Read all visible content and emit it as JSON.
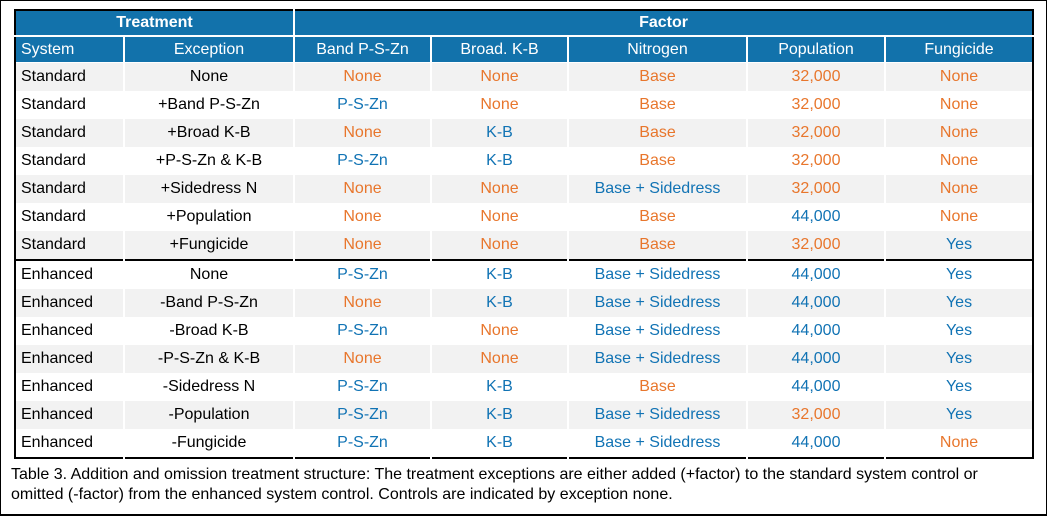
{
  "colors": {
    "header_bg": "#1272AB",
    "header_text": "#FFFFFF",
    "row_stripe": "#F2F2F2",
    "row_plain": "#FFFFFF",
    "border": "#000000",
    "level_text": {
      "plain": "#000000",
      "standard": "#E8762C",
      "enhanced": "#1173B4"
    }
  },
  "table": {
    "group_headers": [
      {
        "label": "Treatment",
        "span": 2
      },
      {
        "label": "Factor",
        "span": 5
      }
    ],
    "columns": [
      "System",
      "Exception",
      "Band P-S-Zn",
      "Broad. K-B",
      "Nitrogen",
      "Population",
      "Fungicide"
    ],
    "rows": [
      {
        "cells": [
          [
            "Standard",
            "plain"
          ],
          [
            "None",
            "plain"
          ],
          [
            "None",
            "standard"
          ],
          [
            "None",
            "standard"
          ],
          [
            "Base",
            "standard"
          ],
          [
            "32,000",
            "standard"
          ],
          [
            "None",
            "standard"
          ]
        ]
      },
      {
        "cells": [
          [
            "Standard",
            "plain"
          ],
          [
            "+Band P-S-Zn",
            "plain"
          ],
          [
            "P-S-Zn",
            "enhanced"
          ],
          [
            "None",
            "standard"
          ],
          [
            "Base",
            "standard"
          ],
          [
            "32,000",
            "standard"
          ],
          [
            "None",
            "standard"
          ]
        ]
      },
      {
        "cells": [
          [
            "Standard",
            "plain"
          ],
          [
            "+Broad K-B",
            "plain"
          ],
          [
            "None",
            "standard"
          ],
          [
            "K-B",
            "enhanced"
          ],
          [
            "Base",
            "standard"
          ],
          [
            "32,000",
            "standard"
          ],
          [
            "None",
            "standard"
          ]
        ]
      },
      {
        "cells": [
          [
            "Standard",
            "plain"
          ],
          [
            "+P-S-Zn & K-B",
            "plain"
          ],
          [
            "P-S-Zn",
            "enhanced"
          ],
          [
            "K-B",
            "enhanced"
          ],
          [
            "Base",
            "standard"
          ],
          [
            "32,000",
            "standard"
          ],
          [
            "None",
            "standard"
          ]
        ]
      },
      {
        "cells": [
          [
            "Standard",
            "plain"
          ],
          [
            "+Sidedress N",
            "plain"
          ],
          [
            "None",
            "standard"
          ],
          [
            "None",
            "standard"
          ],
          [
            "Base + Sidedress",
            "enhanced"
          ],
          [
            "32,000",
            "standard"
          ],
          [
            "None",
            "standard"
          ]
        ]
      },
      {
        "cells": [
          [
            "Standard",
            "plain"
          ],
          [
            "+Population",
            "plain"
          ],
          [
            "None",
            "standard"
          ],
          [
            "None",
            "standard"
          ],
          [
            "Base",
            "standard"
          ],
          [
            "44,000",
            "enhanced"
          ],
          [
            "None",
            "standard"
          ]
        ]
      },
      {
        "cells": [
          [
            "Standard",
            "plain"
          ],
          [
            "+Fungicide",
            "plain"
          ],
          [
            "None",
            "standard"
          ],
          [
            "None",
            "standard"
          ],
          [
            "Base",
            "standard"
          ],
          [
            "32,000",
            "standard"
          ],
          [
            "Yes",
            "enhanced"
          ]
        ]
      },
      {
        "section_start": true,
        "cells": [
          [
            "Enhanced",
            "plain"
          ],
          [
            "None",
            "plain"
          ],
          [
            "P-S-Zn",
            "enhanced"
          ],
          [
            "K-B",
            "enhanced"
          ],
          [
            "Base + Sidedress",
            "enhanced"
          ],
          [
            "44,000",
            "enhanced"
          ],
          [
            "Yes",
            "enhanced"
          ]
        ]
      },
      {
        "cells": [
          [
            "Enhanced",
            "plain"
          ],
          [
            "-Band P-S-Zn",
            "plain"
          ],
          [
            "None",
            "standard"
          ],
          [
            "K-B",
            "enhanced"
          ],
          [
            "Base + Sidedress",
            "enhanced"
          ],
          [
            "44,000",
            "enhanced"
          ],
          [
            "Yes",
            "enhanced"
          ]
        ]
      },
      {
        "cells": [
          [
            "Enhanced",
            "plain"
          ],
          [
            "-Broad K-B",
            "plain"
          ],
          [
            "P-S-Zn",
            "enhanced"
          ],
          [
            "None",
            "standard"
          ],
          [
            "Base + Sidedress",
            "enhanced"
          ],
          [
            "44,000",
            "enhanced"
          ],
          [
            "Yes",
            "enhanced"
          ]
        ]
      },
      {
        "cells": [
          [
            "Enhanced",
            "plain"
          ],
          [
            "-P-S-Zn & K-B",
            "plain"
          ],
          [
            "None",
            "standard"
          ],
          [
            "None",
            "standard"
          ],
          [
            "Base + Sidedress",
            "enhanced"
          ],
          [
            "44,000",
            "enhanced"
          ],
          [
            "Yes",
            "enhanced"
          ]
        ]
      },
      {
        "cells": [
          [
            "Enhanced",
            "plain"
          ],
          [
            "-Sidedress N",
            "plain"
          ],
          [
            "P-S-Zn",
            "enhanced"
          ],
          [
            "K-B",
            "enhanced"
          ],
          [
            "Base",
            "standard"
          ],
          [
            "44,000",
            "enhanced"
          ],
          [
            "Yes",
            "enhanced"
          ]
        ]
      },
      {
        "cells": [
          [
            "Enhanced",
            "plain"
          ],
          [
            "-Population",
            "plain"
          ],
          [
            "P-S-Zn",
            "enhanced"
          ],
          [
            "K-B",
            "enhanced"
          ],
          [
            "Base + Sidedress",
            "enhanced"
          ],
          [
            "32,000",
            "standard"
          ],
          [
            "Yes",
            "enhanced"
          ]
        ]
      },
      {
        "cells": [
          [
            "Enhanced",
            "plain"
          ],
          [
            "-Fungicide",
            "plain"
          ],
          [
            "P-S-Zn",
            "enhanced"
          ],
          [
            "K-B",
            "enhanced"
          ],
          [
            "Base + Sidedress",
            "enhanced"
          ],
          [
            "44,000",
            "enhanced"
          ],
          [
            "None",
            "standard"
          ]
        ]
      }
    ]
  },
  "caption": "Table 3. Addition and omission treatment structure: The treatment exceptions are either added (+factor) to the standard system control or omitted (-factor) from the enhanced system control. Controls are indicated by exception none."
}
